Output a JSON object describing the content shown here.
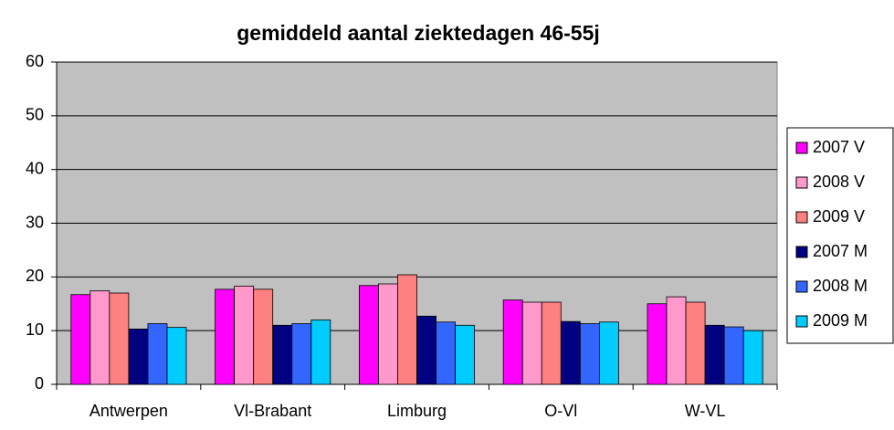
{
  "chart_data": {
    "type": "bar",
    "title": "gemiddeld aantal ziektedagen 46-55j",
    "categories": [
      "Antwerpen",
      "Vl-Brabant",
      "Limburg",
      "O-Vl",
      "W-VL"
    ],
    "series": [
      {
        "name": "2007 V",
        "color": "#ff00ff",
        "values": [
          16.7,
          17.7,
          18.4,
          15.7,
          15.0
        ]
      },
      {
        "name": "2008 V",
        "color": "#ff99cc",
        "values": [
          17.4,
          18.3,
          18.7,
          15.3,
          16.3
        ]
      },
      {
        "name": "2009 V",
        "color": "#ff8080",
        "values": [
          17.0,
          17.7,
          20.4,
          15.3,
          15.3
        ]
      },
      {
        "name": "2007 M",
        "color": "#000080",
        "values": [
          10.3,
          11.0,
          12.7,
          11.7,
          11.0
        ]
      },
      {
        "name": "2008 M",
        "color": "#3366ff",
        "values": [
          11.3,
          11.3,
          11.6,
          11.3,
          10.7
        ]
      },
      {
        "name": "2009 M",
        "color": "#00ccff",
        "values": [
          10.6,
          12.0,
          11.0,
          11.6,
          10.0
        ]
      }
    ],
    "ylim": [
      0,
      60
    ],
    "yticks": [
      0,
      10,
      20,
      30,
      40,
      50,
      60
    ],
    "grid": true,
    "legend": "right"
  }
}
